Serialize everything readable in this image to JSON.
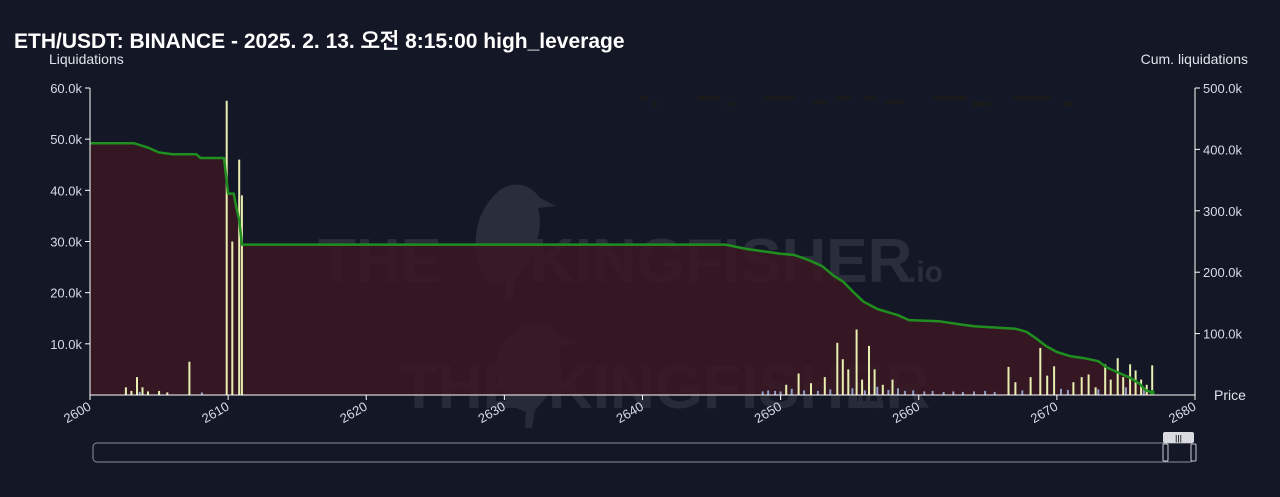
{
  "chart_data": {
    "type": "bar",
    "title": "ETH/USDT: BINANCE - 2025. 2. 13. 오전 8:15:00 high_leverage",
    "ylabel_left": "Liquidations",
    "ylabel_right": "Cum. liquidations",
    "xlabel": "Price",
    "xlim": [
      2600,
      2680
    ],
    "ylim_left": [
      0,
      60000
    ],
    "ylim_right": [
      0,
      500000
    ],
    "x_ticks": [
      2600,
      2610,
      2620,
      2630,
      2640,
      2650,
      2660,
      2670,
      2680
    ],
    "y_left_ticks": [
      {
        "value": 10000,
        "label": "10.0k"
      },
      {
        "value": 20000,
        "label": "20.0k"
      },
      {
        "value": 30000,
        "label": "30.0k"
      },
      {
        "value": 40000,
        "label": "40.0k"
      },
      {
        "value": 50000,
        "label": "50.0k"
      },
      {
        "value": 60000,
        "label": "60.0k"
      }
    ],
    "y_right_ticks": [
      {
        "value": 100000,
        "label": "100.0k"
      },
      {
        "value": 200000,
        "label": "200.0k"
      },
      {
        "value": 300000,
        "label": "300.0k"
      },
      {
        "value": 400000,
        "label": "400.0k"
      },
      {
        "value": 500000,
        "label": "500.0k"
      }
    ],
    "series": [
      {
        "axis": "left",
        "color": "#e8eeb0",
        "bars": [
          [
            2602.6,
            1500
          ],
          [
            2603.0,
            800
          ],
          [
            2603.4,
            3500
          ],
          [
            2603.8,
            1500
          ],
          [
            2604.2,
            700
          ],
          [
            2605.0,
            800
          ],
          [
            2605.6,
            500
          ],
          [
            2607.2,
            6500
          ],
          [
            2609.9,
            57500
          ],
          [
            2610.3,
            30000
          ],
          [
            2610.8,
            46000
          ],
          [
            2611.0,
            39000
          ],
          [
            2650.4,
            2000
          ],
          [
            2651.3,
            4200
          ],
          [
            2652.2,
            2300
          ],
          [
            2653.2,
            3500
          ],
          [
            2654.1,
            10200
          ],
          [
            2654.5,
            7000
          ],
          [
            2654.9,
            5000
          ],
          [
            2655.5,
            12800
          ],
          [
            2655.9,
            3000
          ],
          [
            2656.4,
            9600
          ],
          [
            2656.8,
            5000
          ],
          [
            2657.4,
            2000
          ],
          [
            2658.1,
            3000
          ],
          [
            2666.5,
            5500
          ],
          [
            2667.0,
            2500
          ],
          [
            2668.1,
            3500
          ],
          [
            2668.8,
            9200
          ],
          [
            2669.3,
            3800
          ],
          [
            2669.8,
            5600
          ],
          [
            2671.2,
            2500
          ],
          [
            2671.8,
            3500
          ],
          [
            2672.3,
            4000
          ],
          [
            2672.8,
            1500
          ],
          [
            2673.5,
            6000
          ],
          [
            2673.9,
            3000
          ],
          [
            2674.4,
            7200
          ],
          [
            2674.8,
            3500
          ],
          [
            2675.3,
            6000
          ],
          [
            2675.7,
            4800
          ],
          [
            2676.1,
            3000
          ],
          [
            2676.5,
            2000
          ],
          [
            2676.9,
            5800
          ]
        ]
      },
      {
        "axis": "left",
        "color": "#8e9ec4",
        "bars": [
          [
            2603.6,
            600
          ],
          [
            2608.1,
            500
          ],
          [
            2648.7,
            700
          ],
          [
            2649.1,
            900
          ],
          [
            2649.6,
            800
          ],
          [
            2650.0,
            700
          ],
          [
            2650.8,
            1200
          ],
          [
            2651.7,
            900
          ],
          [
            2652.7,
            800
          ],
          [
            2653.6,
            1100
          ],
          [
            2655.2,
            1300
          ],
          [
            2656.1,
            900
          ],
          [
            2657.0,
            1600
          ],
          [
            2657.8,
            1000
          ],
          [
            2658.5,
            1300
          ],
          [
            2659.0,
            800
          ],
          [
            2659.6,
            900
          ],
          [
            2660.4,
            700
          ],
          [
            2661.0,
            800
          ],
          [
            2661.8,
            600
          ],
          [
            2662.5,
            700
          ],
          [
            2663.2,
            600
          ],
          [
            2664.0,
            700
          ],
          [
            2664.8,
            800
          ],
          [
            2665.5,
            600
          ],
          [
            2667.5,
            900
          ],
          [
            2670.3,
            1200
          ],
          [
            2670.8,
            1000
          ],
          [
            2673.0,
            1100
          ],
          [
            2675.0,
            1500
          ],
          [
            2676.3,
            1300
          ]
        ]
      },
      {
        "axis": "right",
        "type": "line",
        "color": "#1f8f1f",
        "points": [
          [
            2600,
            410000
          ],
          [
            2603.2,
            410000
          ],
          [
            2604.2,
            403000
          ],
          [
            2605.0,
            395000
          ],
          [
            2606.0,
            392000
          ],
          [
            2607.7,
            392000
          ],
          [
            2608.0,
            386000
          ],
          [
            2609.7,
            386000
          ],
          [
            2610.0,
            328000
          ],
          [
            2610.4,
            328000
          ],
          [
            2610.6,
            305000
          ],
          [
            2610.8,
            285000
          ],
          [
            2611.0,
            245000
          ],
          [
            2646.0,
            245000
          ],
          [
            2647.5,
            238000
          ],
          [
            2650.0,
            230000
          ],
          [
            2651.0,
            228000
          ],
          [
            2652.0,
            220000
          ],
          [
            2653.0,
            210000
          ],
          [
            2653.8,
            195000
          ],
          [
            2654.5,
            185000
          ],
          [
            2655.3,
            167000
          ],
          [
            2656.0,
            152000
          ],
          [
            2657.0,
            140000
          ],
          [
            2658.5,
            130000
          ],
          [
            2659.3,
            122000
          ],
          [
            2661.5,
            120000
          ],
          [
            2663.0,
            115000
          ],
          [
            2664.0,
            112000
          ],
          [
            2667.0,
            108000
          ],
          [
            2667.8,
            103000
          ],
          [
            2668.5,
            92000
          ],
          [
            2669.2,
            80000
          ],
          [
            2670.0,
            70000
          ],
          [
            2671.0,
            63000
          ],
          [
            2672.0,
            60000
          ],
          [
            2673.0,
            55000
          ],
          [
            2673.6,
            45000
          ],
          [
            2674.5,
            36000
          ],
          [
            2675.3,
            28000
          ],
          [
            2676.0,
            18000
          ],
          [
            2676.4,
            8000
          ],
          [
            2676.9,
            4000
          ]
        ]
      }
    ],
    "grid": false,
    "watermark": {
      "brand": "THE KINGFISHER",
      "suffix": ".io"
    },
    "scrollbar": {
      "handle": "|||"
    }
  }
}
